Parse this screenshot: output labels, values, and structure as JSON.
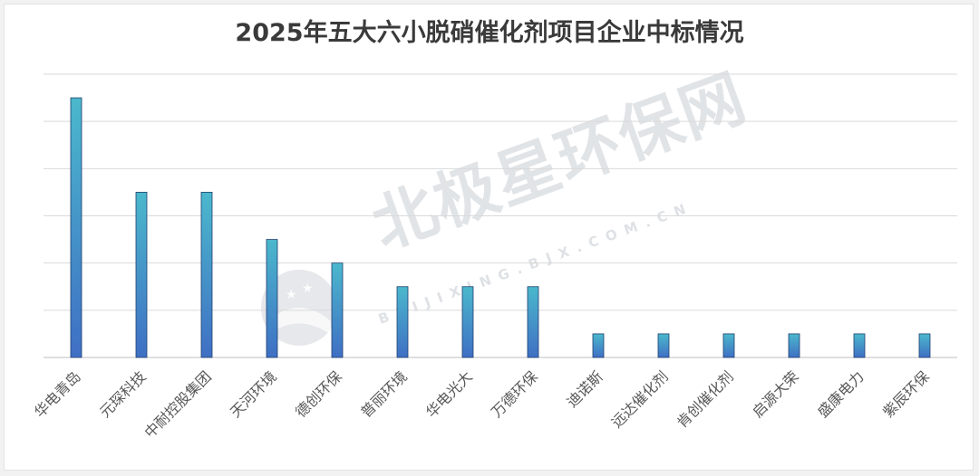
{
  "chart_data": {
    "type": "bar",
    "title": "2025年五大六小脱硝催化剂项目企业中标情况",
    "categories": [
      "华电青岛",
      "元琛科技",
      "中耐控股集团",
      "天河环境",
      "德创环保",
      "普丽环境",
      "华电光大",
      "万德环保",
      "迪诺斯",
      "远达催化剂",
      "肯创催化剂",
      "启源大荣",
      "盛康电力",
      "紫辰环保"
    ],
    "values": [
      11,
      7,
      7,
      5,
      4,
      3,
      3,
      3,
      1,
      1,
      1,
      1,
      1,
      1
    ],
    "ylim": [
      0,
      12
    ],
    "y_tick_step": 2,
    "y_tick_labels_visible": false,
    "grid": true,
    "legend": "none",
    "colors": {
      "bar_top": "#4bb8cc",
      "bar_bottom": "#3f6fc4",
      "bar_edge": "#1f3f6e",
      "grid": "#d9d9d9",
      "axis": "#bfbfbf"
    }
  },
  "watermark": {
    "name": "北极星环保网",
    "url": "BEIJIXING.BJX.COM.CN"
  }
}
